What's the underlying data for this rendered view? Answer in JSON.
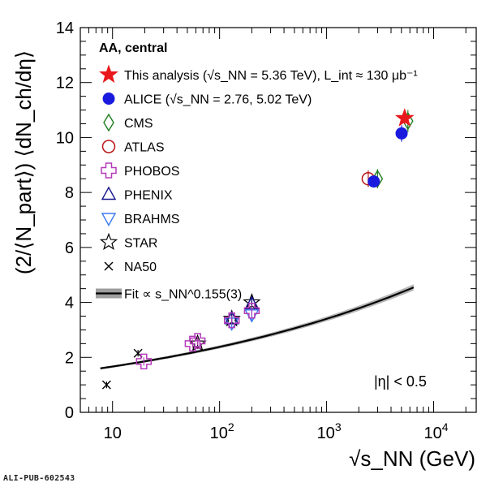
{
  "chart_data": {
    "type": "scatter",
    "x_log_scale": true,
    "xlim": [
      5,
      25000
    ],
    "ylim": [
      0,
      14
    ],
    "y_ticks": [
      0,
      2,
      4,
      6,
      8,
      10,
      12,
      14
    ],
    "x_tick_labels": [
      {
        "value": 10,
        "base": "10",
        "exp": ""
      },
      {
        "value": 100,
        "base": "10",
        "exp": "2"
      },
      {
        "value": 1000,
        "base": "10",
        "exp": "3"
      },
      {
        "value": 10000,
        "base": "10",
        "exp": "4"
      }
    ],
    "ylabel": "(2/⟨N_part⟩) ⟨dN_ch/dη⟩",
    "xlabel": "√s_NN (GeV)",
    "legend_title": "AA, central",
    "annotation": "|η| < 0.5",
    "fit": {
      "label": "Fit ∝ s_NN^0.155(3)",
      "exponent": 0.0775,
      "coeff": 1.166,
      "band_rel": 0.025,
      "x_range": [
        7.7,
        6500
      ]
    },
    "series": [
      {
        "name": "This analysis (√s_NN = 5.36 TeV),  L_int ≈ 130 μb⁻¹",
        "marker": "star-filled",
        "color": "#e8191c",
        "points": [
          {
            "x": 5360,
            "y": 10.7,
            "err": 0.2
          }
        ]
      },
      {
        "name": "ALICE (√s_NN = 2.76, 5.02 TeV)",
        "marker": "circle-filled",
        "color": "#1a1adf",
        "points": [
          {
            "x": 2760,
            "y": 8.4,
            "err": 0.2
          },
          {
            "x": 5020,
            "y": 10.15,
            "err": 0.3
          }
        ]
      },
      {
        "name": "CMS",
        "marker": "diamond-open",
        "color": "#1f7d1f",
        "points": [
          {
            "x": 2990,
            "y": 8.5,
            "err": 0.35
          },
          {
            "x": 5750,
            "y": 10.6,
            "err": 0.4
          }
        ]
      },
      {
        "name": "ATLAS",
        "marker": "circle-open",
        "color": "#b81515",
        "points": [
          {
            "x": 2450,
            "y": 8.5,
            "err": 0.3
          }
        ]
      },
      {
        "name": "PHOBOS",
        "marker": "cross-open",
        "color": "#b43bb8",
        "points": [
          {
            "x": 19.6,
            "y": 1.85,
            "err": 0.15
          },
          {
            "x": 56,
            "y": 2.5,
            "err": 0.15
          },
          {
            "x": 62.4,
            "y": 2.6,
            "err": 0.15
          },
          {
            "x": 130,
            "y": 3.35,
            "err": 0.15
          },
          {
            "x": 200,
            "y": 3.7,
            "err": 0.2
          }
        ]
      },
      {
        "name": "PHENIX",
        "marker": "triangle-up-open",
        "color": "#16168c",
        "points": [
          {
            "x": 130,
            "y": 3.4,
            "err": 0.2
          },
          {
            "x": 200,
            "y": 3.95,
            "err": 0.25
          }
        ]
      },
      {
        "name": "BRAHMS",
        "marker": "triangle-down-open",
        "color": "#3a78ef",
        "points": [
          {
            "x": 130,
            "y": 3.25,
            "err": 0.2
          },
          {
            "x": 200,
            "y": 3.55,
            "err": 0.25
          }
        ]
      },
      {
        "name": "STAR",
        "marker": "star-open",
        "color": "#000000",
        "points": [
          {
            "x": 62.4,
            "y": 2.5,
            "err": 0.2
          },
          {
            "x": 130,
            "y": 3.4,
            "err": 0.2
          },
          {
            "x": 200,
            "y": 4.0,
            "err": 0.2
          }
        ]
      },
      {
        "name": "NA50",
        "marker": "x",
        "color": "#000000",
        "points": [
          {
            "x": 8.8,
            "y": 1.0,
            "err": 0.12
          },
          {
            "x": 17.3,
            "y": 2.15,
            "err": 0.12
          }
        ]
      }
    ]
  },
  "watermark": "ALI-PUB-602543"
}
